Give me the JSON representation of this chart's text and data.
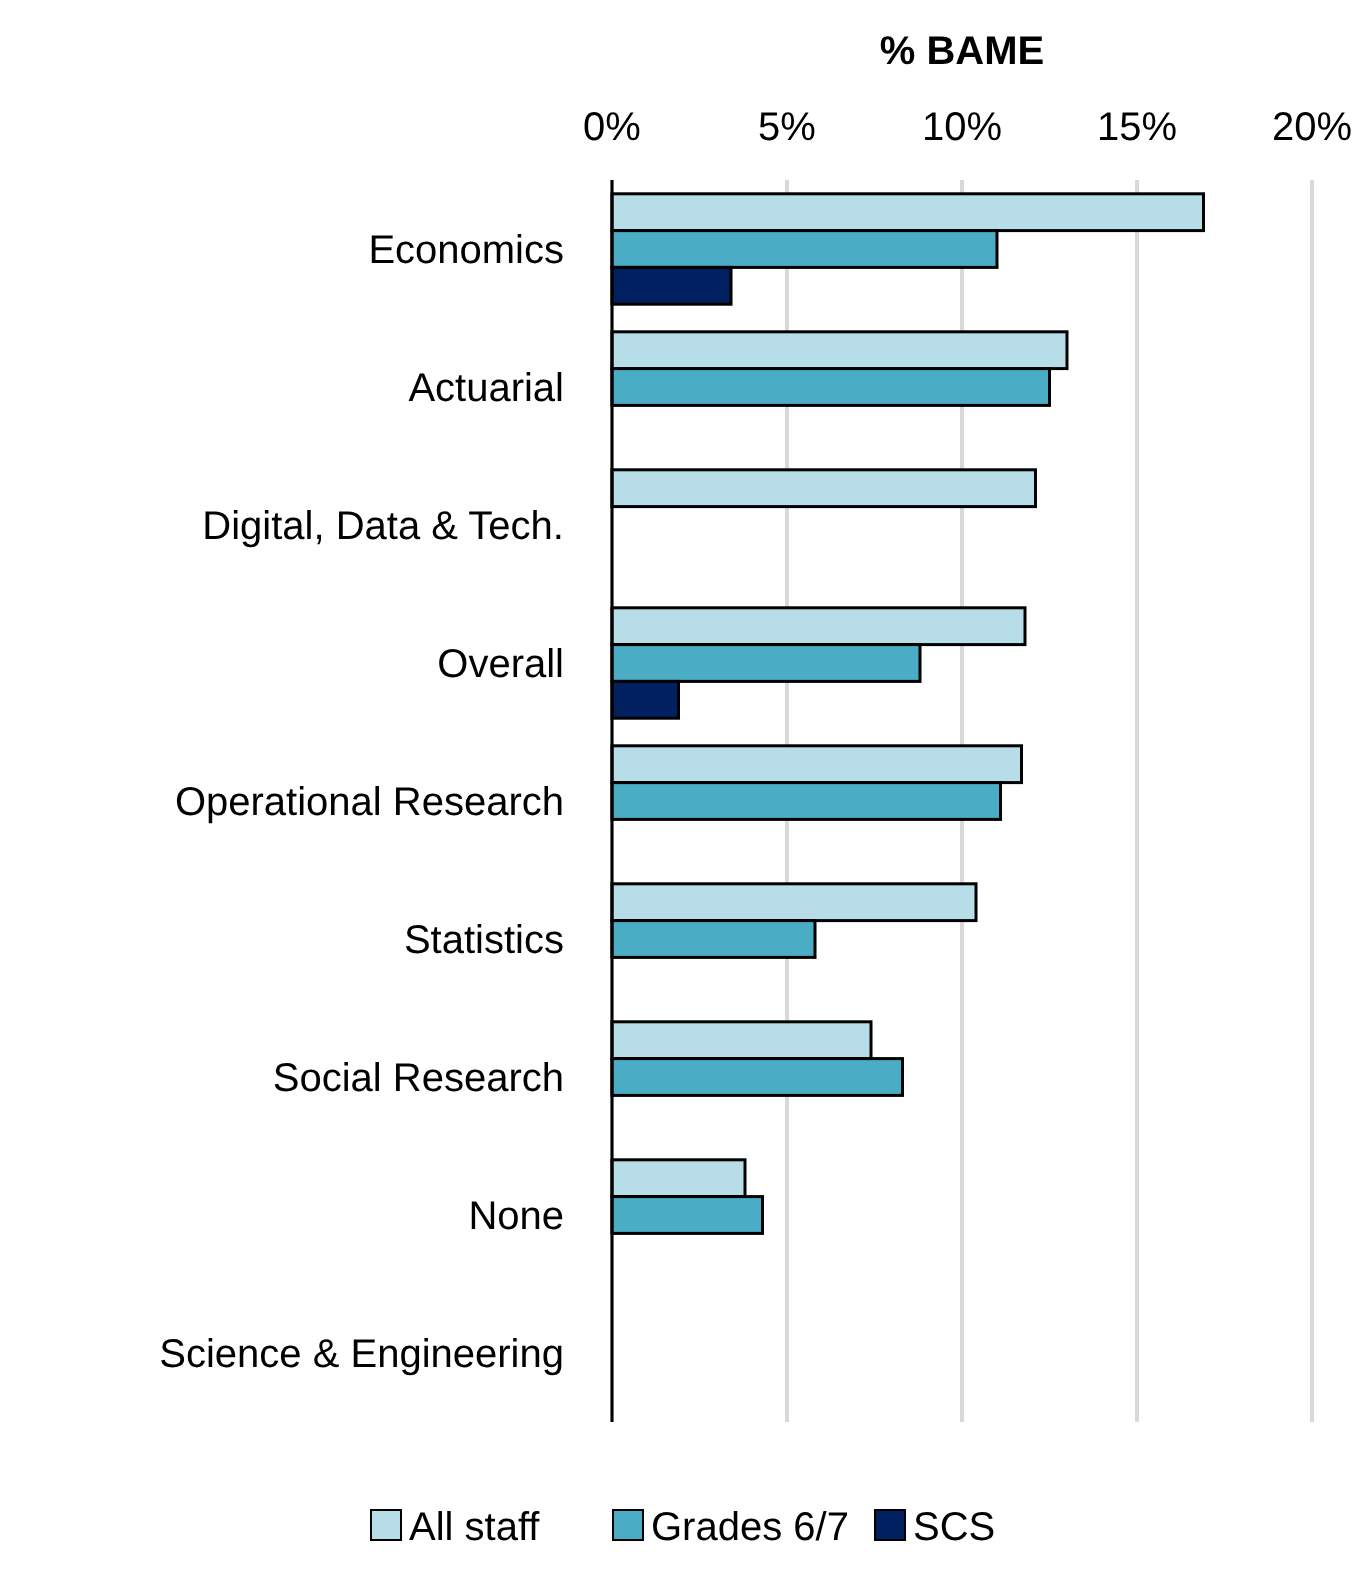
{
  "chart_data": {
    "type": "bar",
    "orientation": "horizontal",
    "xlabel": "% BAME",
    "categories": [
      "Economics",
      "Actuarial",
      "Digital, Data & Tech.",
      "Overall",
      "Operational Research",
      "Statistics",
      "Social Research",
      "None",
      "Science & Engineering"
    ],
    "series": [
      {
        "name": "All staff",
        "color": "#b7dde8",
        "values": [
          16.9,
          13.0,
          12.1,
          11.8,
          11.7,
          10.4,
          7.4,
          3.8,
          null
        ]
      },
      {
        "name": "Grades 6/7",
        "color": "#4bacc6",
        "values": [
          11.0,
          12.5,
          null,
          8.8,
          11.1,
          5.8,
          8.3,
          4.3,
          null
        ]
      },
      {
        "name": "SCS",
        "color": "#002060",
        "values": [
          3.4,
          null,
          null,
          1.9,
          null,
          null,
          null,
          null,
          null
        ]
      }
    ],
    "xlim": [
      0,
      20
    ],
    "xticks": [
      {
        "value": 0,
        "label": "0%"
      },
      {
        "value": 5,
        "label": "5%"
      },
      {
        "value": 10,
        "label": "10%"
      },
      {
        "value": 15,
        "label": "15%"
      },
      {
        "value": 20,
        "label": "20%"
      }
    ],
    "grid": "x",
    "legend": "bottom"
  }
}
